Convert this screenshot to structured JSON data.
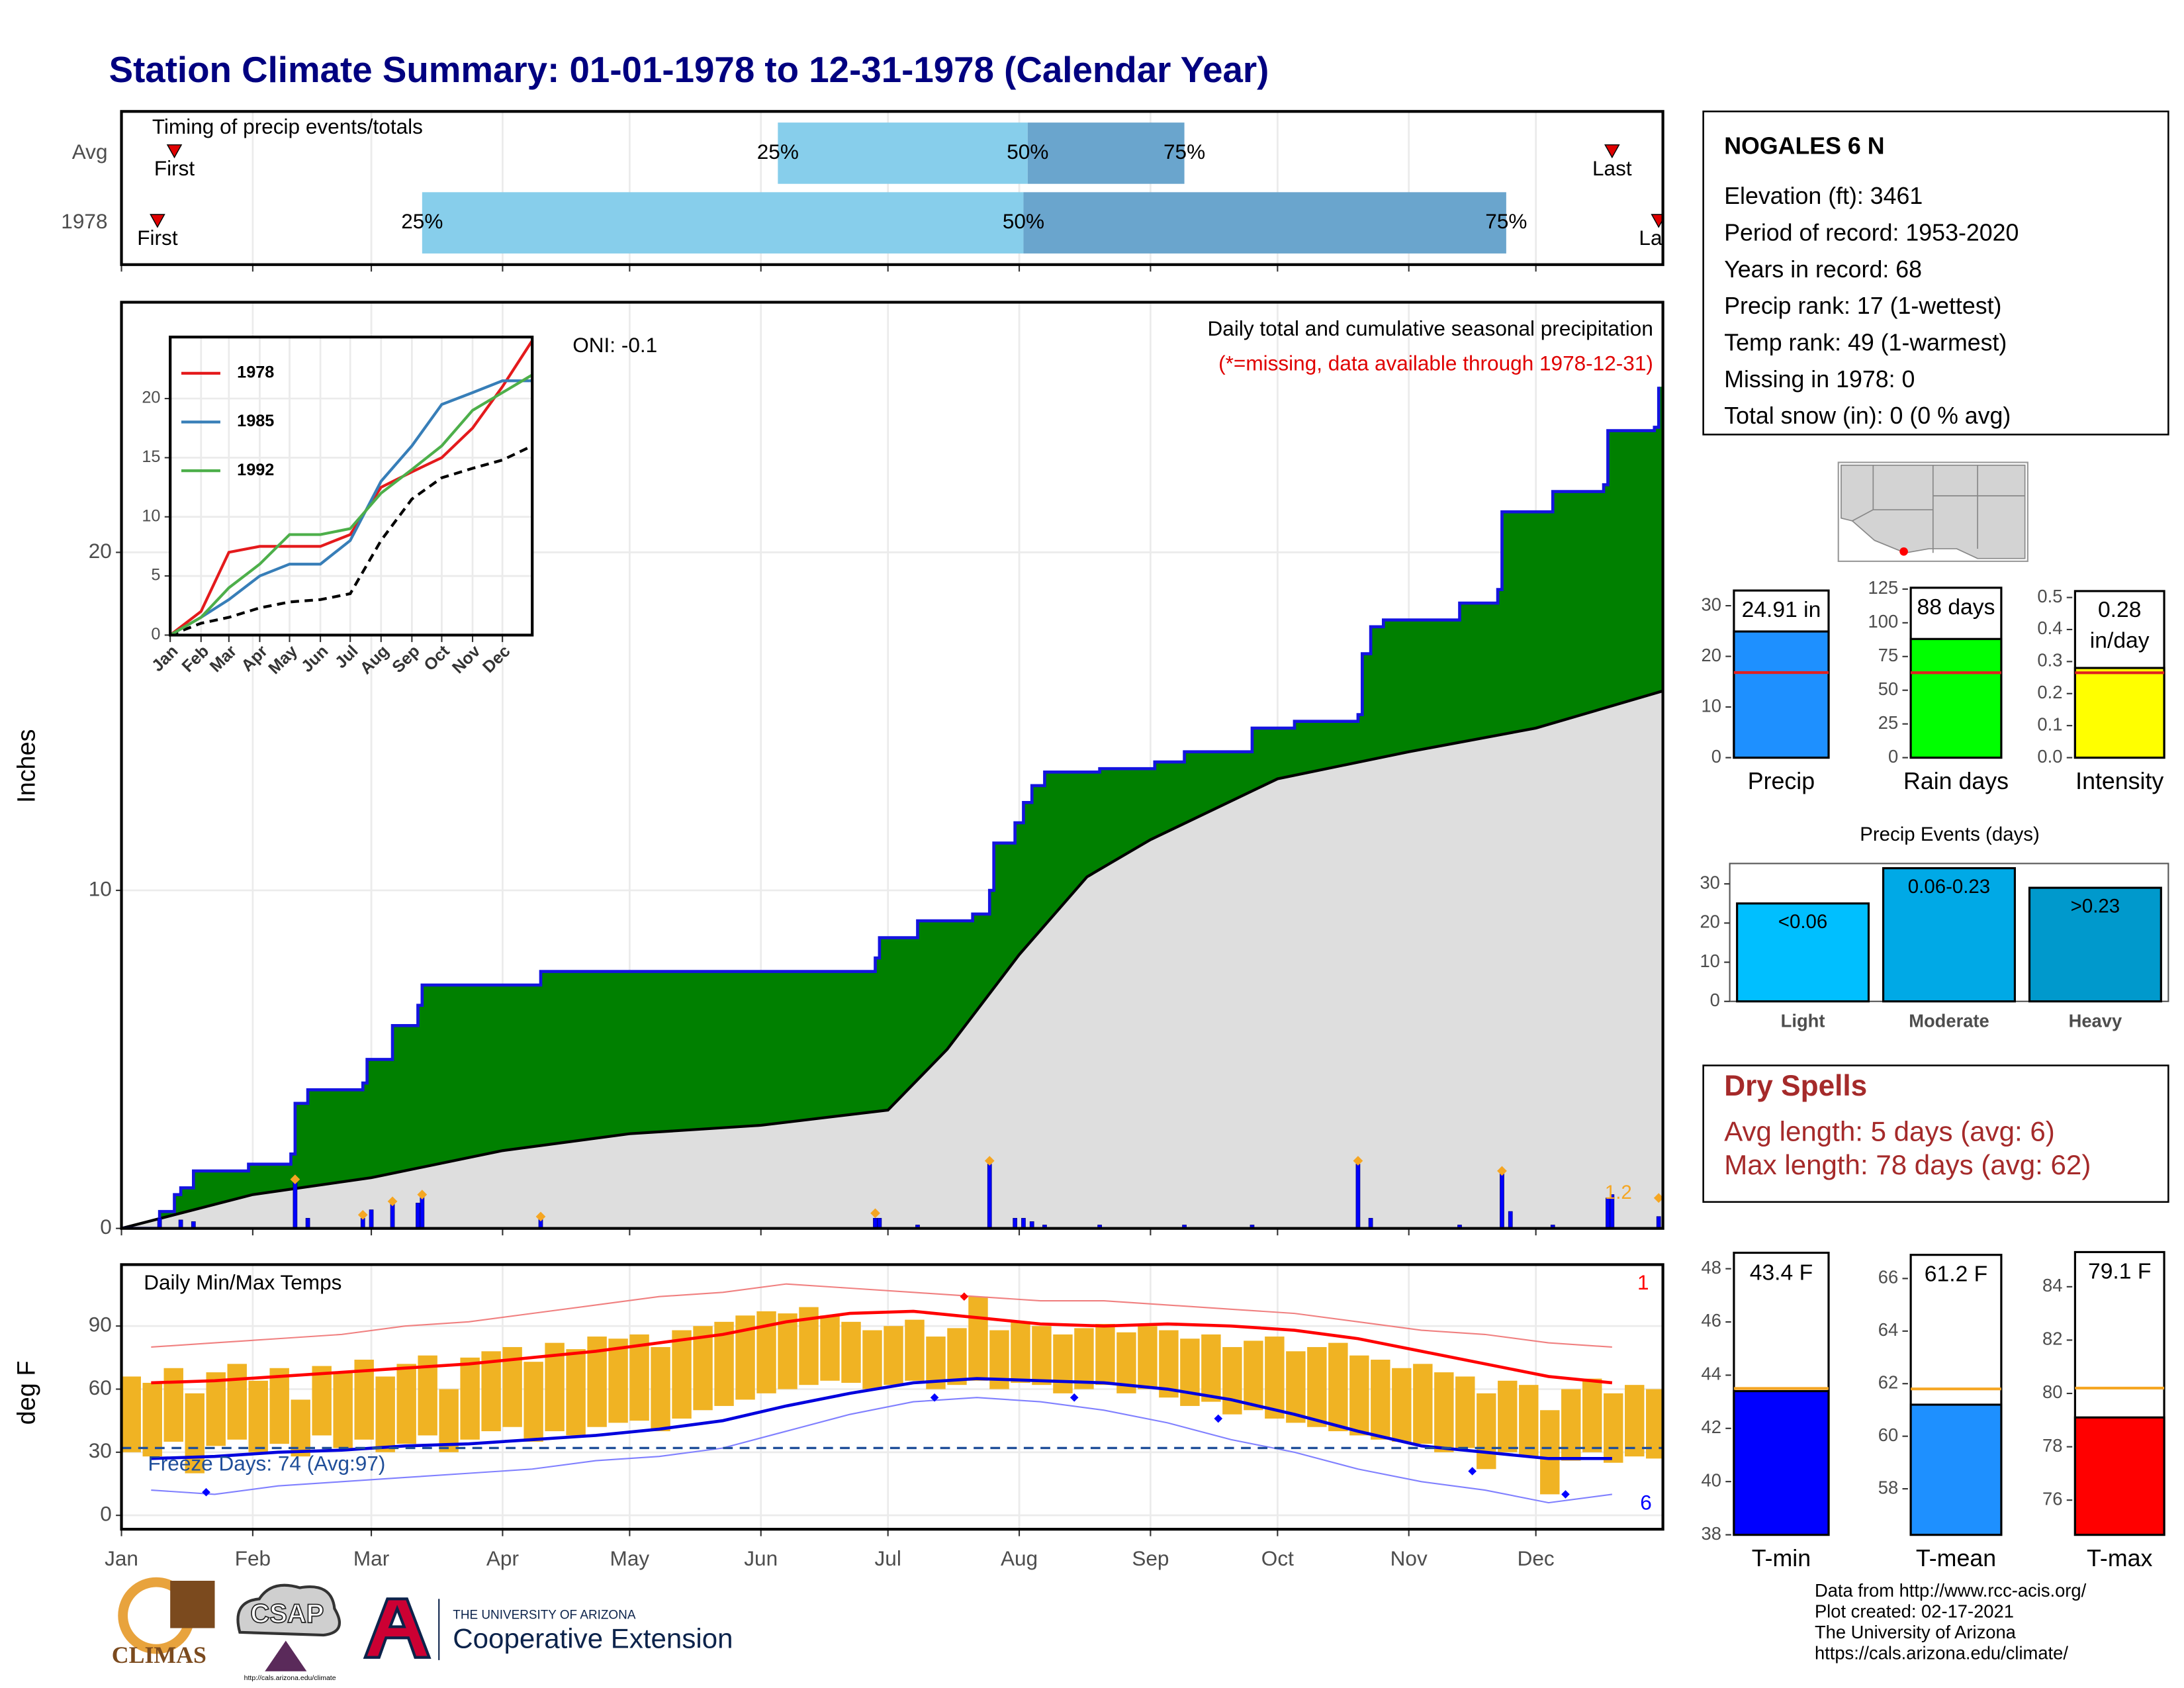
{
  "title": "Station Climate Summary: 01-01-1978 to 12-31-1978 (Calendar Year)",
  "station": {
    "name": "NOGALES 6 N",
    "lines": [
      "Elevation (ft): 3461",
      "Period of record: 1953-2020",
      "Years in record: 68",
      "Precip rank: 17 (1-wettest)",
      "Temp rank: 49 (1-warmest)",
      "Missing in 1978: 0",
      "Total snow (in): 0 (0 % avg)"
    ]
  },
  "dry_spells": {
    "title": "Dry Spells",
    "lines": [
      "Avg length: 5 days (avg: 6)",
      "Max length: 78 days (avg: 62)"
    ]
  },
  "footer": [
    "Data from http://www.rcc-acis.org/",
    "Plot created: 02-17-2021",
    "The University of Arizona",
    "https://cals.arizona.edu/climate/"
  ],
  "logos": {
    "climas": "CLIMAS",
    "csap": "CSAP",
    "csap_url": "http://cals.arizona.edu/climate",
    "university": "THE UNIVERSITY OF ARIZONA",
    "extension": "Cooperative Extension"
  },
  "chart_data": [
    {
      "type": "timeline",
      "title": "Timing of precip events/totals",
      "labels": [
        "First",
        "25%",
        "50%",
        "75%",
        "Last"
      ],
      "rows": [
        {
          "name": "Avg",
          "values": [
            13.5,
            156,
            215,
            252,
            353
          ]
        },
        {
          "name": "1978",
          "values": [
            9.5,
            72,
            214,
            328,
            364
          ]
        }
      ],
      "xlim": [
        1,
        365
      ],
      "xticks": [
        1,
        32,
        60,
        91,
        121,
        152,
        182,
        213,
        244,
        274,
        305,
        335
      ],
      "colors": [
        "#87ceeb",
        "#6aa5cd"
      ],
      "marker_color": "#e00000"
    },
    {
      "type": "step_area",
      "title": "Daily total and cumulative seasonal precipitation",
      "subtitle": "(*=missing, data available through 1978-12-31)",
      "annotation": "ONI: -0.1",
      "y_label": "Inches",
      "xlim": [
        1,
        365
      ],
      "xticks": [
        1,
        32,
        60,
        91,
        121,
        152,
        182,
        213,
        244,
        274,
        305,
        335
      ],
      "ylim": [
        0,
        27.4
      ],
      "yticks": [
        0,
        10,
        20
      ],
      "grid": true,
      "cumulative": {
        "color": "#1414e0",
        "fill": "#008000",
        "x": [
          1,
          10,
          13.5,
          15,
          18,
          31,
          41,
          42,
          45,
          58,
          59,
          65,
          71,
          72,
          100,
          179,
          180,
          189,
          202,
          206,
          207,
          212,
          214,
          216,
          219,
          232,
          245,
          252,
          268,
          278,
          293,
          294,
          296,
          299,
          317,
          326,
          327,
          339,
          351,
          352,
          363,
          364
        ],
        "values": [
          0,
          0.5,
          1.0,
          1.2,
          1.7,
          1.9,
          2.2,
          3.7,
          4.1,
          4.3,
          5.0,
          6.0,
          6.6,
          7.2,
          7.6,
          8.0,
          8.6,
          9.1,
          9.3,
          10.0,
          11.4,
          12.0,
          12.6,
          13.1,
          13.5,
          13.6,
          13.8,
          14.1,
          14.8,
          15.0,
          15.2,
          17.0,
          17.8,
          18.0,
          18.5,
          18.9,
          21.2,
          21.8,
          22.0,
          23.6,
          23.7,
          24.9
        ]
      },
      "average": {
        "color": "#000000",
        "fill": "#dedede",
        "x": [
          1,
          32,
          60,
          91,
          121,
          152,
          182,
          196,
          213,
          229,
          244,
          274,
          305,
          335,
          365
        ],
        "values": [
          0,
          1.0,
          1.5,
          2.3,
          2.8,
          3.05,
          3.5,
          5.3,
          8.1,
          10.4,
          11.5,
          13.3,
          14.1,
          14.8,
          15.9
        ]
      },
      "daily": {
        "color": "#0000ff",
        "x": [
          10,
          15,
          18,
          42,
          45,
          58,
          60,
          65,
          71,
          72,
          100,
          179,
          180,
          189,
          206,
          212,
          214,
          216,
          219,
          232,
          252,
          268,
          293,
          296,
          317,
          327,
          329,
          339,
          352,
          353,
          364
        ],
        "values": [
          0.3,
          0.25,
          0.2,
          1.45,
          0.3,
          0.3,
          0.55,
          0.8,
          0.75,
          1.0,
          0.3,
          0.3,
          0.3,
          0.1,
          1.9,
          0.3,
          0.3,
          0.2,
          0.1,
          0.1,
          0.1,
          0.1,
          1.9,
          0.3,
          0.1,
          1.7,
          0.5,
          0.1,
          0.9,
          1.0,
          0.35
        ]
      },
      "records": {
        "color": "#f5a623",
        "x": [
          42,
          58,
          65,
          72,
          100,
          179,
          206,
          293,
          327,
          364
        ],
        "values": [
          1.45,
          0.4,
          0.8,
          1.0,
          0.35,
          0.45,
          2.0,
          2.0,
          1.7,
          0.9
        ]
      },
      "record_label": "1.2"
    },
    {
      "type": "line",
      "xlim": [
        1,
        365
      ],
      "ylim": [
        0,
        25.2
      ],
      "yticks": [
        0,
        5,
        10,
        15,
        20
      ],
      "xticks": [
        {
          "value": 1,
          "label": "Jan"
        },
        {
          "value": 32,
          "label": "Feb"
        },
        {
          "value": 60,
          "label": "Mar"
        },
        {
          "value": 91,
          "label": "Apr"
        },
        {
          "value": 121,
          "label": "May"
        },
        {
          "value": 152,
          "label": "Jun"
        },
        {
          "value": 182,
          "label": "Jul"
        },
        {
          "value": 213,
          "label": "Aug"
        },
        {
          "value": 244,
          "label": "Sep"
        },
        {
          "value": 274,
          "label": "Oct"
        },
        {
          "value": 305,
          "label": "Nov"
        },
        {
          "value": 335,
          "label": "Dec"
        }
      ],
      "x": [
        1,
        32,
        60,
        91,
        121,
        152,
        182,
        213,
        244,
        274,
        305,
        335,
        365
      ],
      "series": [
        {
          "name": "1978",
          "color": "#e41a1c",
          "values": [
            0,
            2,
            7,
            7.5,
            7.5,
            7.5,
            8.5,
            12.5,
            13.8,
            15,
            17.5,
            21,
            24.9
          ]
        },
        {
          "name": "1985",
          "color": "#377eb8",
          "values": [
            0,
            1.5,
            3,
            5,
            6,
            6,
            8,
            13,
            16,
            19.5,
            20.5,
            21.5,
            21.5
          ]
        },
        {
          "name": "1992",
          "color": "#4daf4a",
          "values": [
            0,
            1.5,
            4,
            6,
            8.5,
            8.5,
            9,
            12,
            14,
            16,
            19,
            20.5,
            22
          ]
        }
      ],
      "reference": {
        "color": "#000000",
        "values": [
          0,
          1,
          1.5,
          2.3,
          2.8,
          3,
          3.5,
          8,
          11.5,
          13.3,
          14.1,
          14.8,
          16
        ]
      }
    },
    {
      "type": "range_bar",
      "title": "Daily Min/Max Temps",
      "y_label": "deg F",
      "annotation": "Freeze Days: 74 (Avg:97)",
      "freeze_line": 32,
      "xlim": [
        1,
        365
      ],
      "ylim": [
        -6.6,
        119.2
      ],
      "yticks": [
        0,
        30,
        60,
        90
      ],
      "xticks": [
        {
          "value": 1,
          "label": "Jan"
        },
        {
          "value": 32,
          "label": "Feb"
        },
        {
          "value": 60,
          "label": "Mar"
        },
        {
          "value": 91,
          "label": "Apr"
        },
        {
          "value": 121,
          "label": "May"
        },
        {
          "value": 152,
          "label": "Jun"
        },
        {
          "value": 182,
          "label": "Jul"
        },
        {
          "value": 213,
          "label": "Aug"
        },
        {
          "value": 244,
          "label": "Sep"
        },
        {
          "value": 274,
          "label": "Oct"
        },
        {
          "value": 305,
          "label": "Nov"
        },
        {
          "value": 335,
          "label": "Dec"
        }
      ],
      "bar_color": "#f0b323",
      "x": [
        1,
        6,
        11,
        16,
        21,
        26,
        31,
        36,
        41,
        46,
        51,
        56,
        61,
        66,
        71,
        76,
        81,
        86,
        91,
        96,
        101,
        106,
        111,
        116,
        121,
        126,
        131,
        136,
        141,
        146,
        151,
        156,
        161,
        166,
        171,
        176,
        181,
        186,
        191,
        196,
        201,
        206,
        211,
        216,
        221,
        226,
        231,
        236,
        241,
        246,
        251,
        256,
        261,
        266,
        271,
        276,
        281,
        286,
        291,
        296,
        301,
        306,
        311,
        316,
        321,
        326,
        331,
        336,
        341,
        346,
        351,
        356,
        361
      ],
      "tmax": [
        66,
        63,
        70,
        58,
        68,
        72,
        64,
        70,
        55,
        71,
        68,
        74,
        66,
        72,
        76,
        60,
        75,
        78,
        80,
        73,
        82,
        79,
        85,
        84,
        86,
        80,
        88,
        90,
        92,
        95,
        97,
        96,
        99,
        95,
        92,
        88,
        90,
        93,
        85,
        89,
        104,
        88,
        92,
        90,
        86,
        89,
        91,
        87,
        90,
        88,
        84,
        86,
        80,
        83,
        85,
        78,
        80,
        82,
        76,
        74,
        70,
        72,
        68,
        66,
        58,
        64,
        62,
        50,
        60,
        65,
        58,
        62,
        60
      ],
      "tmin": [
        30,
        28,
        35,
        20,
        33,
        36,
        30,
        34,
        28,
        38,
        32,
        36,
        30,
        34,
        38,
        30,
        36,
        40,
        42,
        35,
        40,
        38,
        42,
        44,
        45,
        40,
        46,
        50,
        52,
        55,
        58,
        60,
        62,
        64,
        63,
        60,
        62,
        64,
        60,
        62,
        64,
        60,
        63,
        62,
        58,
        60,
        62,
        58,
        60,
        56,
        52,
        54,
        48,
        50,
        46,
        44,
        42,
        40,
        38,
        36,
        35,
        34,
        30,
        32,
        22,
        30,
        28,
        10,
        26,
        30,
        25,
        28,
        27
      ],
      "avg_x": [
        8,
        23,
        38,
        53,
        68,
        83,
        98,
        113,
        128,
        143,
        158,
        173,
        188,
        203,
        218,
        233,
        248,
        263,
        278,
        293,
        308,
        323,
        338,
        353
      ],
      "avg_max": {
        "color": "#ff0000",
        "values": [
          63,
          64,
          66,
          68,
          70,
          72,
          75,
          78,
          82,
          86,
          92,
          96,
          97,
          94,
          91,
          90,
          91,
          90,
          88,
          84,
          78,
          72,
          66,
          63
        ]
      },
      "avg_min": {
        "color": "#0000dd",
        "values": [
          27,
          28,
          30,
          31,
          33,
          34,
          36,
          38,
          41,
          45,
          52,
          58,
          63,
          65,
          64,
          63,
          60,
          55,
          48,
          40,
          33,
          30,
          27,
          27
        ]
      },
      "rec_max": {
        "color": "#f08080",
        "values": [
          80,
          82,
          84,
          86,
          90,
          92,
          96,
          100,
          104,
          106,
          110,
          108,
          106,
          104,
          102,
          102,
          100,
          98,
          96,
          92,
          88,
          86,
          82,
          80
        ]
      },
      "rec_min": {
        "color": "#8080ff",
        "values": [
          12,
          10,
          14,
          16,
          18,
          20,
          22,
          26,
          28,
          32,
          40,
          48,
          54,
          56,
          54,
          50,
          44,
          36,
          30,
          22,
          16,
          12,
          6,
          10
        ]
      },
      "record_high": {
        "color": "#ff0000",
        "count": 1,
        "x": [
          200
        ],
        "values": [
          104
        ]
      },
      "record_low": {
        "color": "#0000ff",
        "count": 6,
        "x": [
          21,
          193,
          226,
          260,
          320,
          342
        ],
        "values": [
          11,
          56,
          56,
          46,
          21,
          10
        ]
      }
    },
    {
      "type": "bar",
      "categories": [
        "Precip"
      ],
      "values": [
        24.91
      ],
      "value_labels": [
        "24.91 in"
      ],
      "average": 16.8,
      "ylim": [
        0,
        33
      ],
      "yticks": [
        0,
        10,
        20,
        30
      ],
      "color": "#1e90ff",
      "avg_color": "#e02020"
    },
    {
      "type": "bar",
      "categories": [
        "Rain days"
      ],
      "values": [
        88
      ],
      "value_labels": [
        "88 days"
      ],
      "average": 63,
      "ylim": [
        0,
        126
      ],
      "yticks": [
        0,
        25,
        50,
        75,
        100,
        125
      ],
      "color": "#00ff00",
      "avg_color": "#e02020"
    },
    {
      "type": "bar",
      "categories": [
        "Intensity"
      ],
      "values": [
        0.28
      ],
      "value_labels": [
        "0.28 in/day"
      ],
      "average": 0.265,
      "ylim": [
        0,
        0.52
      ],
      "yticks": [
        {
          "value": 0,
          "label": "0.0"
        },
        {
          "value": 0.1,
          "label": "0.1"
        },
        {
          "value": 0.2,
          "label": "0.2"
        },
        {
          "value": 0.3,
          "label": "0.3"
        },
        {
          "value": 0.4,
          "label": "0.4"
        },
        {
          "value": 0.5,
          "label": "0.5"
        }
      ],
      "color": "#ffff00",
      "avg_color": "#e02020"
    },
    {
      "type": "bar",
      "title": "Precip Events (days)",
      "categories": [
        "Light",
        "Moderate",
        "Heavy"
      ],
      "values": [
        25,
        34,
        29
      ],
      "bin_labels": [
        "<0.06",
        "0.06-0.23",
        ">0.23"
      ],
      "ylim": [
        0,
        35.2
      ],
      "yticks": [
        0,
        10,
        20,
        30
      ],
      "colors": [
        "#00bfff",
        "#00a9e6",
        "#0099cc"
      ]
    },
    {
      "type": "bar",
      "categories": [
        "T-min"
      ],
      "values": [
        43.4
      ],
      "value_labels": [
        "43.4 F"
      ],
      "average": 43.5,
      "ylim": [
        38,
        48.6
      ],
      "yticks": [
        38,
        40,
        42,
        44,
        46,
        48
      ],
      "color": "#0000ff",
      "avg_color": "#f5a623"
    },
    {
      "type": "bar",
      "categories": [
        "T-mean"
      ],
      "values": [
        61.2
      ],
      "value_labels": [
        "61.2 F"
      ],
      "average": 61.8,
      "ylim": [
        56.25,
        66.9
      ],
      "yticks": [
        58,
        60,
        62,
        64,
        66
      ],
      "color": "#1e90ff",
      "avg_color": "#f5a623"
    },
    {
      "type": "bar",
      "categories": [
        "T-max"
      ],
      "values": [
        79.1
      ],
      "value_labels": [
        "79.1 F"
      ],
      "average": 80.2,
      "ylim": [
        74.7,
        85.3
      ],
      "yticks": [
        76,
        78,
        80,
        82,
        84
      ],
      "color": "#ff0000",
      "avg_color": "#f5a623"
    }
  ]
}
